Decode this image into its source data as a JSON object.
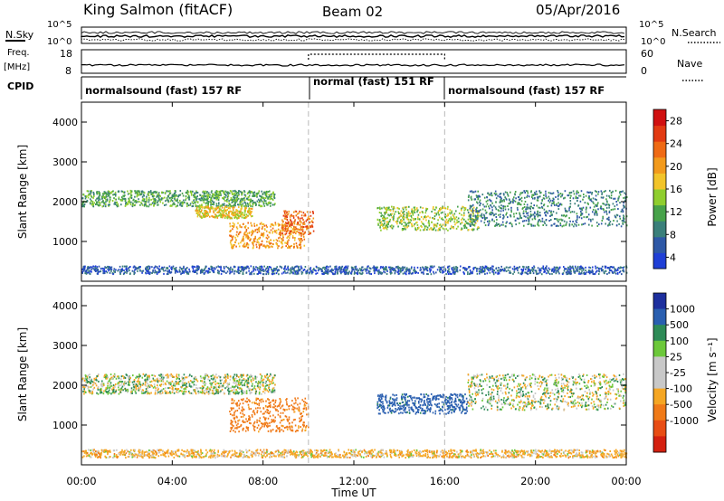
{
  "header": {
    "station": "King Salmon (fitACF)",
    "beam": "Beam 02",
    "date": "05/Apr/2016"
  },
  "status_panel": {
    "left_labels": {
      "nsky": "N.Sky",
      "freq": "Freq.",
      "freq_unit": "[MHz]",
      "cpid": "CPID"
    },
    "right_labels": {
      "nsearch": "N.Search",
      "nave": "Nave"
    },
    "nsky_ticks": [
      "10^5",
      "10^0"
    ],
    "freq_ticks": [
      "18",
      "8"
    ],
    "nave_ticks": [
      "60",
      "0"
    ],
    "nsearch_ticks": [
      "10^5",
      "10^0"
    ],
    "cpid_segments": [
      {
        "label": "normalsound (fast) 157 RF",
        "start_hour": 0,
        "end_hour": 10
      },
      {
        "label": "normal (fast) 151 RF",
        "start_hour": 10,
        "end_hour": 16
      },
      {
        "label": "normalsound (fast) 157 RF",
        "start_hour": 16,
        "end_hour": 24
      }
    ]
  },
  "x_axis": {
    "label": "Time UT",
    "ticks": [
      "00:00",
      "04:00",
      "08:00",
      "12:00",
      "16:00",
      "20:00",
      "00:00"
    ]
  },
  "power_panel": {
    "ylabel": "Slant Range [km]",
    "yticks": [
      "1000",
      "2000",
      "3000",
      "4000"
    ],
    "colorbar_label": "Power [dB]",
    "colorbar_ticks": [
      "4",
      "8",
      "12",
      "16",
      "20",
      "24",
      "28"
    ],
    "colors": [
      "#1f3fd6",
      "#2e58a6",
      "#3a7f7a",
      "#47a24a",
      "#8fce2e",
      "#f2c42a",
      "#f29a1c",
      "#ef6a14",
      "#e23a12",
      "#d01010"
    ]
  },
  "velocity_panel": {
    "ylabel": "Slant Range [km]",
    "yticks": [
      "1000",
      "2000",
      "3000",
      "4000"
    ],
    "colorbar_label": "Velocity [m s⁻¹]",
    "colorbar_ticks": [
      "1000",
      "500",
      "100",
      "25",
      "-25",
      "-100",
      "-500",
      "-1000"
    ],
    "colors": [
      "#1d2f9e",
      "#2a5fb0",
      "#2e8b57",
      "#6cc83a",
      "#c8c8c8",
      "#f5a623",
      "#f07a18",
      "#e84d14",
      "#d42010"
    ]
  },
  "chart_data": [
    {
      "type": "heatmap",
      "title": "Power",
      "x_unit": "hours UT",
      "xlim": [
        0,
        24
      ],
      "ylim": [
        0,
        4500
      ],
      "y_unit": "km",
      "mode_changes_hours": [
        10,
        16
      ],
      "regions": [
        {
          "t0": 0.0,
          "t1": 8.5,
          "r0": 1900,
          "r1": 2300,
          "level": 3
        },
        {
          "t0": 5.0,
          "t1": 7.5,
          "r0": 1600,
          "r1": 1900,
          "level": 5
        },
        {
          "t0": 6.5,
          "t1": 9.8,
          "r0": 850,
          "r1": 1500,
          "level": 6
        },
        {
          "t0": 8.8,
          "t1": 10.2,
          "r0": 1200,
          "r1": 1800,
          "level": 7
        },
        {
          "t0": 13.0,
          "t1": 17.5,
          "r0": 1300,
          "r1": 1900,
          "level": 4
        },
        {
          "t0": 17.0,
          "t1": 24.0,
          "r0": 1400,
          "r1": 2300,
          "level": 2
        },
        {
          "t0": 0.0,
          "t1": 24.0,
          "r0": 200,
          "r1": 400,
          "level": 1
        }
      ]
    },
    {
      "type": "heatmap",
      "title": "Velocity",
      "x_unit": "hours UT",
      "xlim": [
        0,
        24
      ],
      "ylim": [
        0,
        4500
      ],
      "y_unit": "km",
      "mode_changes_hours": [
        10,
        16
      ],
      "regions": [
        {
          "t0": 0.0,
          "t1": 8.5,
          "r0": 1800,
          "r1": 2300,
          "value": 0
        },
        {
          "t0": 6.5,
          "t1": 10.0,
          "r0": 850,
          "r1": 1700,
          "value": -150
        },
        {
          "t0": 13.0,
          "t1": 17.0,
          "r0": 1300,
          "r1": 1800,
          "value": 150
        },
        {
          "t0": 17.0,
          "t1": 24.0,
          "r0": 1400,
          "r1": 2300,
          "value": 0
        },
        {
          "t0": 0.0,
          "t1": 24.0,
          "r0": 200,
          "r1": 400,
          "value": -50
        }
      ]
    }
  ]
}
